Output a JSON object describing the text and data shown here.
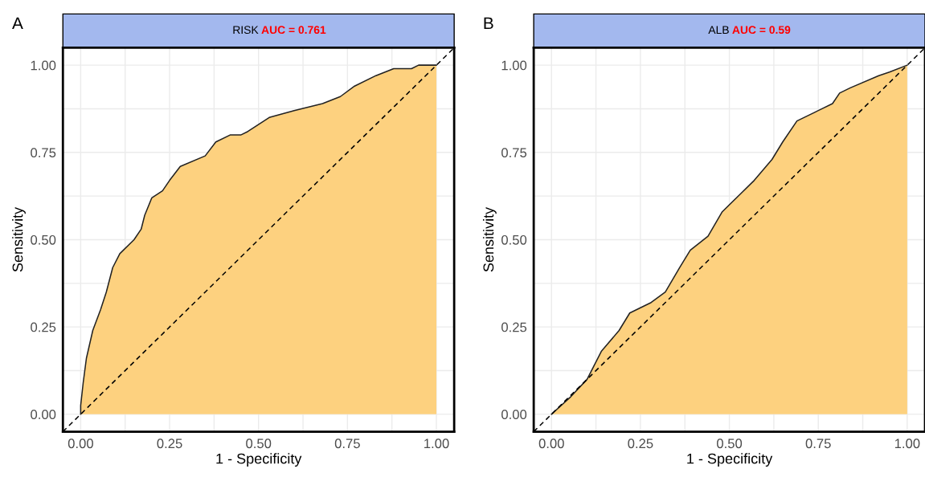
{
  "chart_data": [
    {
      "type": "area",
      "title": "RISK",
      "annotations": [
        "AUC = 0.761",
        "A"
      ],
      "xlabel": "1 - Specificity",
      "ylabel": "Sensitivity",
      "xlim": [
        -0.05,
        1.05
      ],
      "ylim": [
        -0.05,
        1.05
      ],
      "xticks": [
        {
          "value": 0,
          "label": "0.00"
        },
        {
          "value": 0.25,
          "label": "0.25"
        },
        {
          "value": 0.5,
          "label": "0.50"
        },
        {
          "value": 0.75,
          "label": "0.75"
        },
        {
          "value": 1,
          "label": "1.00"
        }
      ],
      "yticks": [
        {
          "value": 0,
          "label": "0.00"
        },
        {
          "value": 0.25,
          "label": "0.25"
        },
        {
          "value": 0.5,
          "label": "0.50"
        },
        {
          "value": 0.75,
          "label": "0.75"
        },
        {
          "value": 1,
          "label": "1.00"
        }
      ],
      "grid": true,
      "series": [
        {
          "color": "#fdd17f",
          "x": [
            0,
            0,
            0.007,
            0.016,
            0.034,
            0.056,
            0.072,
            0.09,
            0.11,
            0.15,
            0.17,
            0.18,
            0.2,
            0.23,
            0.25,
            0.28,
            0.35,
            0.38,
            0.42,
            0.45,
            0.47,
            0.53,
            0.6,
            0.68,
            0.73,
            0.77,
            0.83,
            0.88,
            0.93,
            0.95,
            1
          ],
          "values": [
            0,
            0.025,
            0.09,
            0.16,
            0.24,
            0.3,
            0.35,
            0.42,
            0.46,
            0.5,
            0.53,
            0.57,
            0.62,
            0.64,
            0.67,
            0.71,
            0.74,
            0.78,
            0.8,
            0.8,
            0.81,
            0.85,
            0.87,
            0.89,
            0.91,
            0.94,
            0.97,
            0.99,
            0.99,
            1,
            1
          ]
        },
        {
          "type": "line",
          "color": "#000000",
          "line_style": "dashed",
          "x": [
            -0.05,
            1.05
          ],
          "values": [
            -0.05,
            1.05
          ]
        }
      ]
    },
    {
      "type": "area",
      "title": "ALB",
      "annotations": [
        "AUC = 0.59",
        "B"
      ],
      "xlabel": "1 - Specificity",
      "ylabel": "Sensitivity",
      "xlim": [
        -0.05,
        1.05
      ],
      "ylim": [
        -0.05,
        1.05
      ],
      "xticks": [
        {
          "value": 0,
          "label": "0.00"
        },
        {
          "value": 0.25,
          "label": "0.25"
        },
        {
          "value": 0.5,
          "label": "0.50"
        },
        {
          "value": 0.75,
          "label": "0.75"
        },
        {
          "value": 1,
          "label": "1.00"
        }
      ],
      "yticks": [
        {
          "value": 0,
          "label": "0.00"
        },
        {
          "value": 0.25,
          "label": "0.25"
        },
        {
          "value": 0.5,
          "label": "0.50"
        },
        {
          "value": 0.75,
          "label": "0.75"
        },
        {
          "value": 1,
          "label": "1.00"
        }
      ],
      "grid": true,
      "series": [
        {
          "color": "#fdd17f",
          "x": [
            0,
            0.054,
            0.1,
            0.14,
            0.19,
            0.22,
            0.28,
            0.32,
            0.36,
            0.39,
            0.44,
            0.48,
            0.53,
            0.57,
            0.62,
            0.65,
            0.69,
            0.74,
            0.79,
            0.81,
            0.84,
            0.92,
            0.95,
            1
          ],
          "values": [
            0,
            0.05,
            0.1,
            0.18,
            0.24,
            0.29,
            0.32,
            0.35,
            0.42,
            0.47,
            0.51,
            0.58,
            0.63,
            0.67,
            0.73,
            0.78,
            0.84,
            0.865,
            0.89,
            0.92,
            0.935,
            0.97,
            0.98,
            1
          ]
        },
        {
          "type": "line",
          "color": "#000000",
          "line_style": "dashed",
          "x": [
            -0.05,
            1.05
          ],
          "values": [
            -0.05,
            1.05
          ]
        }
      ]
    }
  ]
}
